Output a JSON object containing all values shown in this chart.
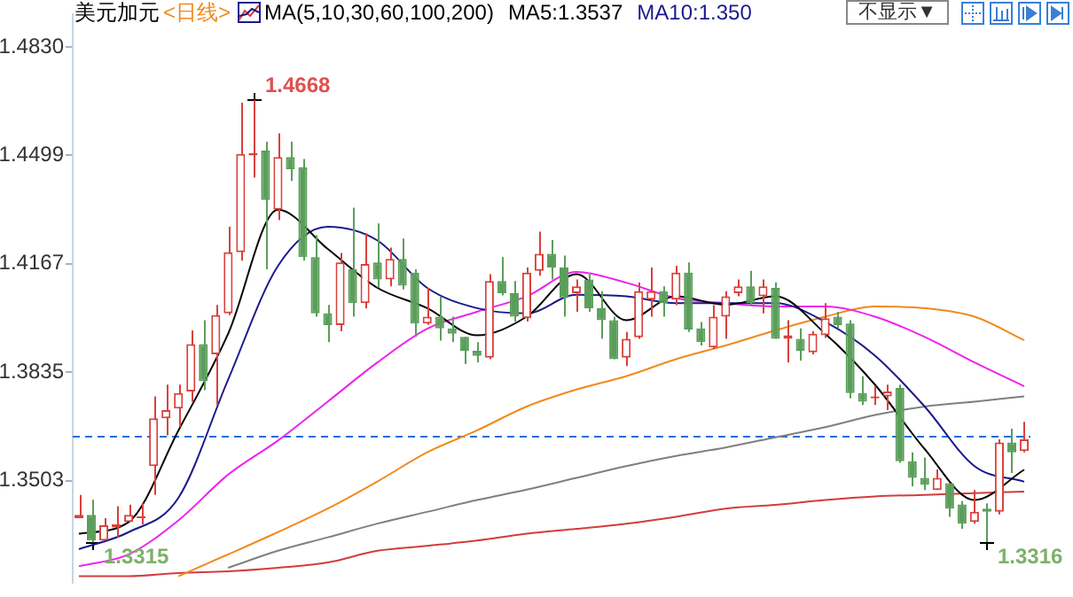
{
  "chart_data": {
    "type": "candlestick",
    "title": "美元加元",
    "subtitle": "<日线>",
    "categories": [
      null,
      null,
      null,
      null,
      null,
      null,
      null,
      null,
      null,
      null,
      null,
      null,
      null,
      null,
      null,
      null,
      null,
      null,
      null,
      null,
      null,
      null,
      null,
      null,
      null,
      null,
      null,
      null,
      null,
      null,
      null,
      null,
      null,
      null,
      null,
      null,
      null,
      null,
      null,
      null,
      null,
      null,
      null,
      null,
      null,
      null,
      null,
      null,
      null,
      null,
      null,
      null,
      null,
      null,
      null,
      null,
      null,
      null,
      null,
      null,
      null,
      null,
      null,
      null,
      null,
      null,
      null,
      null,
      null,
      null,
      null,
      null,
      null,
      null,
      null,
      null,
      null
    ],
    "ohlc": [
      [
        1.3389,
        1.346,
        1.3389,
        1.3399
      ],
      [
        1.3399,
        1.3445,
        1.3315,
        1.332
      ],
      [
        1.332,
        1.3389,
        1.332,
        1.3367
      ],
      [
        1.336,
        1.3425,
        1.333,
        1.337
      ],
      [
        1.3377,
        1.343,
        1.3377,
        1.3399
      ],
      [
        1.3389,
        1.3434,
        1.337,
        1.3394
      ],
      [
        1.3548,
        1.3761,
        1.346,
        1.3694
      ],
      [
        1.3694,
        1.3797,
        1.3642,
        1.3719
      ],
      [
        1.3724,
        1.3797,
        1.3668,
        1.3771
      ],
      [
        1.3776,
        1.3963,
        1.3745,
        1.3921
      ],
      [
        1.3921,
        1.3994,
        1.378,
        1.3807
      ],
      [
        1.389,
        1.4041,
        1.3735,
        1.401
      ],
      [
        1.4015,
        1.428,
        1.401,
        1.4202
      ],
      [
        1.4202,
        1.4659,
        1.4176,
        1.4503
      ],
      [
        1.4498,
        1.4668,
        1.443,
        1.4505
      ],
      [
        1.4513,
        1.454,
        1.415,
        1.4362
      ],
      [
        1.4332,
        1.4566,
        1.43,
        1.4493
      ],
      [
        1.4493,
        1.454,
        1.442,
        1.4456
      ],
      [
        1.4462,
        1.4487,
        1.4176,
        1.4187
      ],
      [
        1.4187,
        1.4254,
        1.4005,
        1.4015
      ],
      [
        1.4015,
        1.4041,
        1.3927,
        1.3979
      ],
      [
        1.3979,
        1.42,
        1.396,
        1.4171
      ],
      [
        1.415,
        1.4338,
        1.4005,
        1.4046
      ],
      [
        1.4046,
        1.426,
        1.403,
        1.4166
      ],
      [
        1.4171,
        1.429,
        1.4093,
        1.4119
      ],
      [
        1.4119,
        1.4216,
        1.4098,
        1.4182
      ],
      [
        1.4182,
        1.4244,
        1.4088,
        1.41
      ],
      [
        1.414,
        1.415,
        1.3943,
        1.3984
      ],
      [
        1.3984,
        1.4093,
        1.398,
        1.4005
      ],
      [
        1.4005,
        1.4067,
        1.3932,
        1.3969
      ],
      [
        1.3969,
        1.4005,
        1.3927,
        1.3953
      ],
      [
        1.3943,
        1.3943,
        1.386,
        1.3901
      ],
      [
        1.3901,
        1.3927,
        1.3865,
        1.3885
      ],
      [
        1.388,
        1.4135,
        1.3875,
        1.4114
      ],
      [
        1.4114,
        1.4187,
        1.407,
        1.4077
      ],
      [
        1.4077,
        1.4114,
        1.399,
        1.4005
      ],
      [
        1.4,
        1.4155,
        1.399,
        1.414
      ],
      [
        1.4145,
        1.4265,
        1.413,
        1.4197
      ],
      [
        1.4197,
        1.4239,
        1.4119,
        1.4155
      ],
      [
        1.4155,
        1.4192,
        1.4005,
        1.4062
      ],
      [
        1.4077,
        1.4119,
        1.402,
        1.4098
      ],
      [
        1.4119,
        1.4135,
        1.402,
        1.4031
      ],
      [
        1.4031,
        1.4083,
        1.3937,
        1.3994
      ],
      [
        1.3994,
        1.4005,
        1.3875,
        1.3875
      ],
      [
        1.388,
        1.3958,
        1.3854,
        1.3937
      ],
      [
        1.3942,
        1.4109,
        1.3937,
        1.4083
      ],
      [
        1.4057,
        1.4155,
        1.4005,
        1.4083
      ],
      [
        1.4083,
        1.4098,
        1.4005,
        1.4046
      ],
      [
        1.4057,
        1.4161,
        1.404,
        1.414
      ],
      [
        1.414,
        1.4171,
        1.3958,
        1.3966
      ],
      [
        1.3969,
        1.3989,
        1.3917,
        1.3927
      ],
      [
        1.3911,
        1.404,
        1.3906,
        1.4005
      ],
      [
        1.4005,
        1.4083,
        1.3937,
        1.4067
      ],
      [
        1.4077,
        1.4119,
        1.4067,
        1.4098
      ],
      [
        1.4098,
        1.4145,
        1.404,
        1.4046
      ],
      [
        1.4067,
        1.4119,
        1.4015,
        1.4098
      ],
      [
        1.4093,
        1.411,
        1.3937,
        1.3937
      ],
      [
        1.3937,
        1.3994,
        1.3865,
        1.3948
      ],
      [
        1.3937,
        1.3969,
        1.387,
        1.3901
      ],
      [
        1.3896,
        1.396,
        1.389,
        1.3953
      ],
      [
        1.3948,
        1.4046,
        1.394,
        1.4
      ],
      [
        1.4005,
        1.402,
        1.397,
        1.3979
      ],
      [
        1.3984,
        1.3994,
        1.3755,
        1.3771
      ],
      [
        1.3771,
        1.3823,
        1.3735,
        1.3745
      ],
      [
        1.3755,
        1.3792,
        1.3735,
        1.3761
      ],
      [
        1.3761,
        1.3797,
        1.3719,
        1.3776
      ],
      [
        1.3787,
        1.3797,
        1.3558,
        1.3563
      ],
      [
        1.3563,
        1.359,
        1.3486,
        1.3512
      ],
      [
        1.3512,
        1.3574,
        1.3475,
        1.3491
      ],
      [
        1.3475,
        1.3538,
        1.3475,
        1.3512
      ],
      [
        1.3496,
        1.3496,
        1.3393,
        1.3418
      ],
      [
        1.3431,
        1.3441,
        1.3356,
        1.3372
      ],
      [
        1.3377,
        1.3475,
        1.3372,
        1.3408
      ],
      [
        1.3418,
        1.3434,
        1.3316,
        1.3408
      ],
      [
        1.3408,
        1.363,
        1.34,
        1.362
      ],
      [
        1.362,
        1.3662,
        1.3527,
        1.359
      ],
      [
        1.3594,
        1.3683,
        1.359,
        1.363
      ]
    ],
    "colors": [
      "#d9413c",
      "#5b9e5b",
      "#d9413c",
      "#d9413c",
      "#d9413c",
      "#d9413c",
      "#d9413c",
      "#d9413c",
      "#d9413c",
      "#d9413c",
      "#5b9e5b",
      "#d9413c",
      "#d9413c",
      "#d9413c",
      "#d9413c",
      "#5b9e5b",
      "#d9413c",
      "#5b9e5b",
      "#5b9e5b",
      "#5b9e5b",
      "#5b9e5b",
      "#d9413c",
      "#5b9e5b",
      "#d9413c",
      "#5b9e5b",
      "#d9413c",
      "#5b9e5b",
      "#5b9e5b",
      "#d9413c",
      "#5b9e5b",
      "#5b9e5b",
      "#5b9e5b",
      "#5b9e5b",
      "#d9413c",
      "#5b9e5b",
      "#5b9e5b",
      "#d9413c",
      "#d9413c",
      "#5b9e5b",
      "#5b9e5b",
      "#d9413c",
      "#5b9e5b",
      "#5b9e5b",
      "#5b9e5b",
      "#d9413c",
      "#d9413c",
      "#d9413c",
      "#5b9e5b",
      "#d9413c",
      "#5b9e5b",
      "#5b9e5b",
      "#d9413c",
      "#d9413c",
      "#d9413c",
      "#5b9e5b",
      "#d9413c",
      "#5b9e5b",
      "#d9413c",
      "#5b9e5b",
      "#d9413c",
      "#d9413c",
      "#5b9e5b",
      "#5b9e5b",
      "#5b9e5b",
      "#d9413c",
      "#d9413c",
      "#5b9e5b",
      "#5b9e5b",
      "#5b9e5b",
      "#d9413c",
      "#5b9e5b",
      "#5b9e5b",
      "#d9413c",
      "#5b9e5b",
      "#d9413c",
      "#5b9e5b",
      "#d9413c"
    ],
    "series": [
      {
        "type": "line",
        "name": "MA5:1.3537",
        "color": "#000000",
        "values": [
          1.3341,
          null,
          null,
          null,
          1.3377,
          null,
          null,
          null,
          1.3657,
          null,
          null,
          null,
          1.3953,
          null,
          null,
          null,
          1.4332,
          null,
          null,
          null,
          1.4212,
          null,
          null,
          null,
          1.4093,
          null,
          null,
          null,
          1.4031,
          null,
          null,
          null,
          1.3948,
          null,
          null,
          null,
          1.4005,
          null,
          null,
          null,
          1.4135,
          null,
          null,
          null,
          1.3994,
          null,
          null,
          null,
          1.4067,
          null,
          null,
          null,
          1.4041,
          null,
          null,
          null,
          1.4067,
          null,
          null,
          null,
          1.3953,
          null,
          null,
          null,
          1.3797,
          null,
          null,
          null,
          1.36,
          null,
          null,
          null,
          1.3444,
          null,
          null,
          null,
          1.3537
        ]
      },
      {
        "type": "line",
        "name": "MA10:1.350",
        "color": "#1a1a8c",
        "values": [
          1.3294,
          null,
          null,
          null,
          1.3346,
          null,
          null,
          null,
          1.3451,
          null,
          null,
          null,
          1.3813,
          null,
          null,
          null,
          1.416,
          null,
          null,
          null,
          1.428,
          null,
          null,
          null,
          1.4238,
          null,
          null,
          null,
          1.4093,
          null,
          null,
          null,
          1.4031,
          null,
          null,
          null,
          1.4015,
          null,
          null,
          null,
          1.4072,
          null,
          null,
          null,
          1.4067,
          null,
          null,
          null,
          1.4046,
          null,
          null,
          null,
          1.4046,
          null,
          null,
          null,
          1.4046,
          null,
          null,
          null,
          1.3989,
          null,
          null,
          null,
          1.3886,
          null,
          null,
          null,
          1.373,
          null,
          null,
          null,
          1.3548,
          null,
          null,
          null,
          1.35
        ]
      },
      {
        "type": "line",
        "color": "#ee22ee",
        "values": [
          1.3242,
          null,
          null,
          null,
          1.3278,
          null,
          null,
          null,
          1.3382,
          null,
          null,
          null,
          1.3522,
          null,
          null,
          null,
          1.3626,
          null,
          null,
          null,
          1.3745,
          null,
          null,
          null,
          1.3865,
          null,
          null,
          null,
          1.3968,
          null,
          null,
          null,
          1.402,
          null,
          null,
          null,
          1.4067,
          null,
          null,
          null,
          1.4142,
          null,
          null,
          null,
          1.4109,
          null,
          null,
          null,
          1.4062,
          null,
          null,
          null,
          1.4046,
          null,
          null,
          null,
          1.4036,
          null,
          null,
          null,
          1.4036,
          null,
          null,
          null,
          1.4005,
          null,
          null,
          null,
          1.3943,
          null,
          null,
          null,
          1.3865,
          null,
          null,
          null,
          1.3792
        ]
      },
      {
        "type": "line",
        "color": "#f08a1c",
        "values": [
          null,
          null,
          null,
          null,
          null,
          null,
          null,
          null,
          1.3211,
          null,
          null,
          null,
          1.3278,
          null,
          null,
          null,
          1.3346,
          null,
          null,
          null,
          1.3418,
          null,
          null,
          null,
          1.3501,
          null,
          null,
          null,
          1.359,
          null,
          null,
          null,
          1.3657,
          null,
          null,
          null,
          1.373,
          null,
          null,
          null,
          1.3782,
          null,
          null,
          null,
          1.3823,
          null,
          null,
          null,
          1.3875,
          null,
          null,
          null,
          1.3917,
          null,
          null,
          null,
          1.3963,
          null,
          null,
          null,
          1.4005,
          null,
          null,
          null,
          1.4036,
          null,
          null,
          null,
          1.4031,
          null,
          null,
          null,
          1.4005,
          null,
          null,
          null,
          1.3933
        ]
      },
      {
        "type": "line",
        "color": "#7f7f7f",
        "values": [
          null,
          null,
          null,
          null,
          null,
          null,
          null,
          null,
          null,
          null,
          null,
          null,
          1.3237,
          null,
          null,
          null,
          1.3289,
          null,
          null,
          null,
          1.333,
          null,
          null,
          null,
          1.3372,
          null,
          null,
          null,
          1.3408,
          null,
          null,
          null,
          1.3444,
          null,
          null,
          null,
          1.3476,
          null,
          null,
          null,
          1.3512,
          null,
          null,
          null,
          1.3548,
          null,
          null,
          null,
          1.3579,
          null,
          null,
          null,
          1.3605,
          null,
          null,
          null,
          1.3636,
          null,
          null,
          null,
          1.3667,
          null,
          null,
          null,
          1.3704,
          null,
          null,
          null,
          1.373,
          null,
          null,
          null,
          1.3745,
          null,
          null,
          null,
          1.3761
        ]
      },
      {
        "type": "line",
        "color": "#d43c3c",
        "values": [
          1.3211,
          null,
          null,
          null,
          1.3211,
          null,
          null,
          null,
          1.3221,
          null,
          null,
          null,
          1.3226,
          null,
          null,
          null,
          1.3237,
          null,
          null,
          null,
          1.3253,
          null,
          null,
          null,
          1.3289,
          null,
          null,
          null,
          1.3304,
          null,
          null,
          null,
          1.332,
          null,
          null,
          null,
          1.3341,
          null,
          null,
          null,
          1.3356,
          null,
          null,
          null,
          1.3372,
          null,
          null,
          null,
          1.3393,
          null,
          null,
          null,
          1.3418,
          null,
          null,
          null,
          1.3429,
          null,
          null,
          null,
          1.3444,
          null,
          null,
          null,
          1.3455,
          null,
          null,
          null,
          1.346,
          null,
          null,
          null,
          1.3465,
          null,
          null,
          null,
          1.347
        ]
      }
    ],
    "ylim": [
      1.3192,
      1.4929
    ],
    "yticks": [
      1.3503,
      1.3835,
      1.4167,
      1.4499,
      {
        "value": 1.483,
        "label": "1.4830"
      }
    ],
    "ref_lines": [
      {
        "axis": "y",
        "value": 1.3642,
        "color": "#1e6fd9",
        "line_style": "dashed"
      }
    ],
    "annotations": [
      "MA(5,10,30,60,100,200)",
      "不显示▼",
      "1.4668",
      "1.3315",
      "1.3316"
    ],
    "legend": "top",
    "tick_labels": "y"
  }
}
